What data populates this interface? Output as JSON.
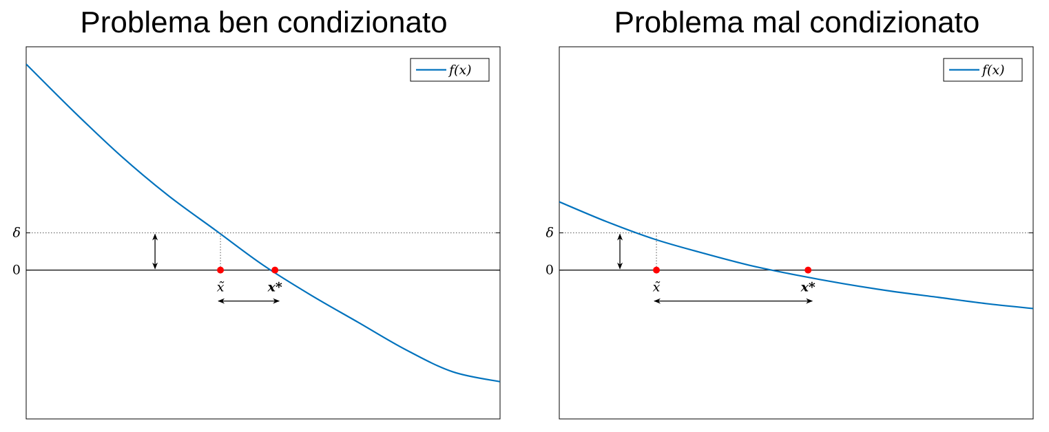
{
  "colors": {
    "curve": "#0072bd",
    "points": "#ff0000",
    "axis": "#000000"
  },
  "chart_data": [
    {
      "type": "line",
      "title": "Problema ben condizionato",
      "legend": {
        "entries": [
          "f(x)"
        ],
        "position": "top-right"
      },
      "y_ticks": [
        {
          "label": "δ",
          "value": 0.15
        },
        {
          "label": "0",
          "value": 0
        }
      ],
      "xlim": [
        0,
        1
      ],
      "ylim": [
        -0.6,
        0.9
      ],
      "series": [
        {
          "name": "f(x)",
          "x": [
            0,
            0.1,
            0.2,
            0.3,
            0.4,
            0.5,
            0.6,
            0.7,
            0.8,
            0.9,
            1.0
          ],
          "y": [
            0.83,
            0.64,
            0.46,
            0.3,
            0.16,
            0.02,
            -0.1,
            -0.21,
            -0.32,
            -0.41,
            -0.45
          ]
        }
      ],
      "points": [
        {
          "label": "x̃",
          "x": 0.41,
          "y": 0,
          "bold": false
        },
        {
          "label": "x*",
          "x": 0.525,
          "y": 0,
          "bold": true
        }
      ]
    },
    {
      "type": "line",
      "title": "Problema mal condizionato",
      "legend": {
        "entries": [
          "f(x)"
        ],
        "position": "top-right"
      },
      "y_ticks": [
        {
          "label": "δ",
          "value": 0.15
        },
        {
          "label": "0",
          "value": 0
        }
      ],
      "xlim": [
        0,
        1
      ],
      "ylim": [
        -0.6,
        0.9
      ],
      "series": [
        {
          "name": "f(x)",
          "x": [
            0,
            0.1,
            0.2,
            0.3,
            0.4,
            0.5,
            0.6,
            0.7,
            0.8,
            0.9,
            1.0
          ],
          "y": [
            0.275,
            0.195,
            0.125,
            0.07,
            0.02,
            -0.02,
            -0.055,
            -0.085,
            -0.11,
            -0.135,
            -0.155
          ]
        }
      ],
      "points": [
        {
          "label": "x̃",
          "x": 0.205,
          "y": 0,
          "bold": false
        },
        {
          "label": "x*",
          "x": 0.525,
          "y": 0,
          "bold": true
        }
      ]
    }
  ]
}
